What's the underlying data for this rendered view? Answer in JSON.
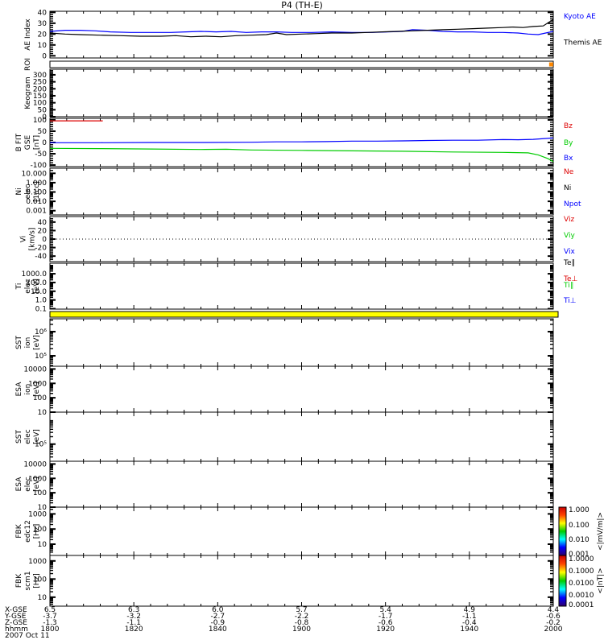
{
  "chart_data": {
    "type": "line",
    "title": "P4 (TH-E)",
    "date_label": "2007 Oct 11",
    "time_axis": {
      "row_labels": [
        "X-GSE",
        "Y-GSE",
        "Z-GSE",
        "hhmm"
      ],
      "ticks": [
        {
          "f": 0.0,
          "x_gse": "6.5",
          "y_gse": "-3.7",
          "z_gse": "-1.3",
          "hhmm": "1800"
        },
        {
          "f": 0.1667,
          "x_gse": "6.3",
          "y_gse": "-3.2",
          "z_gse": "-1.1",
          "hhmm": "1820"
        },
        {
          "f": 0.3333,
          "x_gse": "6.0",
          "y_gse": "-2.7",
          "z_gse": "-0.9",
          "hhmm": "1840"
        },
        {
          "f": 0.5,
          "x_gse": "5.7",
          "y_gse": "-2.2",
          "z_gse": "-0.8",
          "hhmm": "1900"
        },
        {
          "f": 0.6667,
          "x_gse": "5.4",
          "y_gse": "-1.7",
          "z_gse": "-0.6",
          "hhmm": "1920"
        },
        {
          "f": 0.8333,
          "x_gse": "4.9",
          "y_gse": "-1.1",
          "z_gse": "-0.4",
          "hhmm": "1940"
        },
        {
          "f": 1.0,
          "x_gse": "4.4",
          "y_gse": "-0.6",
          "z_gse": "-0.2",
          "hhmm": "2000"
        }
      ]
    },
    "panels": [
      {
        "id": "ae",
        "kind": "plot",
        "ylabel": [
          "AE Index"
        ],
        "scale": "linear",
        "range": [
          -2,
          41
        ],
        "yticks": [
          {
            "v": 0,
            "label": "0"
          },
          {
            "v": 10,
            "label": "10"
          },
          {
            "v": 20,
            "label": "20"
          },
          {
            "v": 30,
            "label": "30"
          },
          {
            "v": 40,
            "label": "40"
          }
        ],
        "series": [
          {
            "name": "Kyoto AE",
            "color": "#0000ff",
            "points": [
              [
                0,
                22.5
              ],
              [
                0.03,
                23.5
              ],
              [
                0.06,
                23.5
              ],
              [
                0.09,
                23
              ],
              [
                0.12,
                22
              ],
              [
                0.16,
                21.5
              ],
              [
                0.2,
                21.5
              ],
              [
                0.24,
                21.5
              ],
              [
                0.27,
                22
              ],
              [
                0.3,
                22.5
              ],
              [
                0.33,
                22
              ],
              [
                0.36,
                22.5
              ],
              [
                0.39,
                21.5
              ],
              [
                0.42,
                22
              ],
              [
                0.45,
                22
              ],
              [
                0.48,
                21.5
              ],
              [
                0.52,
                21.5
              ],
              [
                0.56,
                22
              ],
              [
                0.6,
                21.5
              ],
              [
                0.64,
                21.5
              ],
              [
                0.67,
                22
              ],
              [
                0.7,
                22.5
              ],
              [
                0.72,
                24
              ],
              [
                0.75,
                23.5
              ],
              [
                0.78,
                22.5
              ],
              [
                0.81,
                22
              ],
              [
                0.84,
                22
              ],
              [
                0.87,
                21.5
              ],
              [
                0.9,
                21.5
              ],
              [
                0.93,
                21
              ],
              [
                0.95,
                20
              ],
              [
                0.97,
                19.5
              ],
              [
                1,
                22.5
              ]
            ]
          },
          {
            "name": "Themis AE",
            "color": "#000000",
            "points": [
              [
                0,
                21
              ],
              [
                0.03,
                20
              ],
              [
                0.06,
                19.5
              ],
              [
                0.1,
                19
              ],
              [
                0.14,
                18.5
              ],
              [
                0.18,
                18
              ],
              [
                0.22,
                18
              ],
              [
                0.25,
                18.5
              ],
              [
                0.28,
                17.5
              ],
              [
                0.31,
                18
              ],
              [
                0.34,
                17.5
              ],
              [
                0.37,
                18.5
              ],
              [
                0.4,
                19
              ],
              [
                0.43,
                19.5
              ],
              [
                0.45,
                21
              ],
              [
                0.47,
                19.5
              ],
              [
                0.5,
                20
              ],
              [
                0.53,
                20.5
              ],
              [
                0.56,
                21
              ],
              [
                0.6,
                21
              ],
              [
                0.63,
                21.5
              ],
              [
                0.66,
                22
              ],
              [
                0.69,
                22.5
              ],
              [
                0.72,
                23
              ],
              [
                0.75,
                23.5
              ],
              [
                0.78,
                24
              ],
              [
                0.81,
                24.5
              ],
              [
                0.84,
                25
              ],
              [
                0.87,
                25.5
              ],
              [
                0.9,
                26
              ],
              [
                0.92,
                26.5
              ],
              [
                0.94,
                26
              ],
              [
                0.96,
                27
              ],
              [
                0.98,
                27.5
              ],
              [
                1,
                33.5
              ]
            ]
          }
        ],
        "right_labels": [
          {
            "text": "Kyoto AE",
            "color": "#0000ff",
            "f": 0.1
          },
          {
            "text": "Themis AE",
            "color": "#000000",
            "f": 0.66
          }
        ]
      },
      {
        "id": "roi",
        "kind": "strip",
        "ylabel": [
          "ROI"
        ],
        "fill": "#ffffff",
        "marker": {
          "f": 0.995,
          "color": "#ff8800"
        }
      },
      {
        "id": "keogram",
        "kind": "plot",
        "ylabel": [
          "Keogram"
        ],
        "scale": "linear",
        "range": [
          0,
          340
        ],
        "yticks": [
          {
            "v": 0,
            "label": "0"
          },
          {
            "v": 50,
            "label": "50"
          },
          {
            "v": 100,
            "label": "100"
          },
          {
            "v": 150,
            "label": "150"
          },
          {
            "v": 200,
            "label": "200"
          },
          {
            "v": 250,
            "label": "250"
          },
          {
            "v": 300,
            "label": "300"
          }
        ],
        "series": []
      },
      {
        "id": "bfit",
        "kind": "plot",
        "ylabel": [
          "B FIT",
          "GSE",
          "[nT]"
        ],
        "scale": "linear",
        "range": [
          -107,
          107
        ],
        "yticks": [
          {
            "v": -100,
            "label": "-100"
          },
          {
            "v": -50,
            "label": "-50"
          },
          {
            "v": 0,
            "label": "0"
          },
          {
            "v": 50,
            "label": "50"
          },
          {
            "v": 100,
            "label": "100"
          }
        ],
        "series": [
          {
            "name": "Bz",
            "color": "#dd0000",
            "points": [
              [
                0,
                96
              ],
              [
                0.105,
                96
              ]
            ]
          },
          {
            "name": "By",
            "color": "#00cc00",
            "points": [
              [
                0,
                -26
              ],
              [
                0.1,
                -27
              ],
              [
                0.2,
                -29
              ],
              [
                0.3,
                -31
              ],
              [
                0.35,
                -30
              ],
              [
                0.4,
                -33
              ],
              [
                0.5,
                -35
              ],
              [
                0.6,
                -37
              ],
              [
                0.7,
                -39
              ],
              [
                0.8,
                -42
              ],
              [
                0.9,
                -44
              ],
              [
                0.95,
                -46
              ],
              [
                0.97,
                -55
              ],
              [
                0.99,
                -72
              ],
              [
                1,
                -85
              ]
            ]
          },
          {
            "name": "Bx",
            "color": "#0000ff",
            "points": [
              [
                0,
                -1
              ],
              [
                0.1,
                -1
              ],
              [
                0.2,
                0
              ],
              [
                0.3,
                0
              ],
              [
                0.4,
                1
              ],
              [
                0.45,
                3
              ],
              [
                0.5,
                3
              ],
              [
                0.55,
                4
              ],
              [
                0.6,
                6
              ],
              [
                0.65,
                6
              ],
              [
                0.7,
                7
              ],
              [
                0.75,
                9
              ],
              [
                0.8,
                10
              ],
              [
                0.85,
                10
              ],
              [
                0.9,
                13
              ],
              [
                0.93,
                12
              ],
              [
                0.96,
                14
              ],
              [
                1,
                20
              ]
            ]
          }
        ],
        "right_labels": [
          {
            "text": "Bz",
            "color": "#dd0000",
            "f": 0.15
          },
          {
            "text": "By",
            "color": "#00cc00",
            "f": 0.5
          },
          {
            "text": "Bx",
            "color": "#0000ff",
            "f": 0.82
          }
        ]
      },
      {
        "id": "ni",
        "kind": "plot",
        "ylabel": [
          "Ni",
          "elec",
          "[1/cc]"
        ],
        "scale": "log",
        "range": [
          0.00035,
          35
        ],
        "yticks": [
          {
            "v": 0.001,
            "label": "0.001"
          },
          {
            "v": 0.01,
            "label": "0.010"
          },
          {
            "v": 0.1,
            "label": "0.100"
          },
          {
            "v": 1,
            "label": "1.000"
          },
          {
            "v": 10,
            "label": "10.000"
          }
        ],
        "series": [],
        "right_labels": [
          {
            "text": "Ne",
            "color": "#dd0000",
            "f": 0.07
          },
          {
            "text": "Ni",
            "color": "#000000",
            "f": 0.41
          },
          {
            "text": "Npot",
            "color": "#0000ff",
            "f": 0.76
          }
        ]
      },
      {
        "id": "vi",
        "kind": "plot",
        "ylabel": [
          "Vi",
          "[km/s]"
        ],
        "scale": "linear",
        "range": [
          -53,
          53
        ],
        "zero_dotted": true,
        "yticks": [
          {
            "v": -40,
            "label": "-40"
          },
          {
            "v": -20,
            "label": "-20"
          },
          {
            "v": 0,
            "label": "0"
          },
          {
            "v": 20,
            "label": "20"
          },
          {
            "v": 40,
            "label": "40"
          }
        ],
        "series": [],
        "right_labels": [
          {
            "text": "Viz",
            "color": "#dd0000",
            "f": 0.05
          },
          {
            "text": "Viy",
            "color": "#00cc00",
            "f": 0.41
          },
          {
            "text": "Vix",
            "color": "#0000ff",
            "f": 0.77
          }
        ]
      },
      {
        "id": "ti",
        "kind": "plot",
        "ylabel": [
          "Ti",
          "elec",
          "[eV]"
        ],
        "scale": "log",
        "range": [
          0.09,
          16000
        ],
        "yticks": [
          {
            "v": 0.1,
            "label": "0.1"
          },
          {
            "v": 1,
            "label": "1.0"
          },
          {
            "v": 10,
            "label": "10.0"
          },
          {
            "v": 100,
            "label": "100.0"
          },
          {
            "v": 1000,
            "label": "1000.0"
          }
        ],
        "series": [],
        "right_labels": [
          {
            "text": "Te∥",
            "color": "#000000",
            "f": -0.02
          },
          {
            "text": "Te⊥",
            "color": "#dd0000",
            "f": 0.33
          },
          {
            "text": "Ti∥",
            "color": "#00cc00",
            "f": 0.47
          },
          {
            "text": "Ti⊥",
            "color": "#0000ff",
            "f": 0.81
          }
        ]
      },
      {
        "id": "mode",
        "kind": "strip",
        "ylabel": [],
        "fill": "#ffff00"
      },
      {
        "id": "sst_ion",
        "kind": "plot",
        "ylabel": [
          "SST",
          "ion",
          "[eV]"
        ],
        "scale": "log",
        "range": [
          37000,
          3400000
        ],
        "yticks": [
          {
            "v": 100000,
            "label": "10⁵"
          },
          {
            "v": 1000000,
            "label": "10⁶"
          }
        ],
        "series": []
      },
      {
        "id": "esa_ion",
        "kind": "plot",
        "ylabel": [
          "ESA",
          "ion",
          "[eV]"
        ],
        "scale": "log",
        "range": [
          10,
          15500
        ],
        "yticks": [
          {
            "v": 10,
            "label": "10"
          },
          {
            "v": 100,
            "label": "100"
          },
          {
            "v": 1000,
            "label": "1000"
          },
          {
            "v": 10000,
            "label": "10000"
          }
        ],
        "series": []
      },
      {
        "id": "sst_elec",
        "kind": "plot",
        "ylabel": [
          "SST",
          "elec",
          "[eV]"
        ],
        "scale": "log",
        "range": [
          20000,
          2000000
        ],
        "yticks": [
          {
            "v": 100000,
            "label": "10⁵"
          }
        ],
        "series": []
      },
      {
        "id": "esa_elec",
        "kind": "plot",
        "ylabel": [
          "ESA",
          "elec",
          "[eV]"
        ],
        "scale": "log",
        "range": [
          10,
          15500
        ],
        "yticks": [
          {
            "v": 10,
            "label": "10"
          },
          {
            "v": 100,
            "label": "100"
          },
          {
            "v": 1000,
            "label": "1000"
          },
          {
            "v": 10000,
            "label": "10000"
          }
        ],
        "series": []
      },
      {
        "id": "fbk1",
        "kind": "plot",
        "ylabel": [
          "FBK",
          "edc12",
          "[Hz]"
        ],
        "scale": "log",
        "range": [
          1.8,
          2800
        ],
        "yticks": [
          {
            "v": 10,
            "label": "10"
          },
          {
            "v": 100,
            "label": "100"
          },
          {
            "v": 1000,
            "label": "1000"
          }
        ],
        "series": []
      },
      {
        "id": "fbk2",
        "kind": "plot",
        "ylabel": [
          "FBK",
          "scm1",
          "[Hz]"
        ],
        "scale": "log",
        "range": [
          3.2,
          2000
        ],
        "yticks": [
          {
            "v": 10,
            "label": "10"
          },
          {
            "v": 100,
            "label": "100"
          },
          {
            "v": 1000,
            "label": "1000"
          }
        ],
        "series": []
      }
    ],
    "colorbars": [
      {
        "panel": "fbk1",
        "unit": "<|mV/m|>",
        "stops": [
          "#cc0000",
          "#ff4400",
          "#ffff00",
          "#00cc00",
          "#00ffff",
          "#0000ff",
          "#30006a"
        ],
        "labels": [
          {
            "f": 0.05,
            "text": "1.000"
          },
          {
            "f": 0.37,
            "text": "0.100"
          },
          {
            "f": 0.67,
            "text": "0.010"
          },
          {
            "f": 0.97,
            "text": "0.001"
          }
        ]
      },
      {
        "panel": "fbk2",
        "unit": "<|nT|>",
        "stops": [
          "#cc0000",
          "#ff4400",
          "#ffff00",
          "#00cc00",
          "#00ffff",
          "#0000ff",
          "#30006a"
        ],
        "labels": [
          {
            "f": 0.06,
            "text": "1.0000"
          },
          {
            "f": 0.3,
            "text": "0.1000"
          },
          {
            "f": 0.54,
            "text": "0.0100"
          },
          {
            "f": 0.78,
            "text": "0.0010"
          },
          {
            "f": 0.97,
            "text": "0.0001"
          }
        ]
      }
    ]
  }
}
